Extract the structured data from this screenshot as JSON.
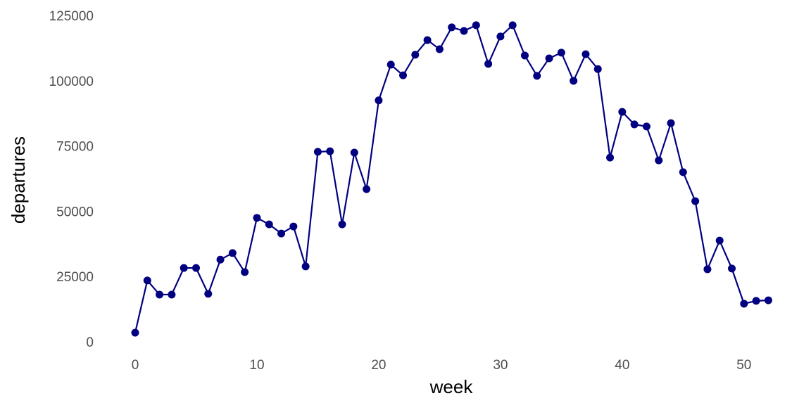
{
  "chart_data": {
    "type": "line",
    "x_label": "week",
    "y_label": "departures",
    "x": [
      0,
      1,
      2,
      3,
      4,
      5,
      6,
      7,
      8,
      9,
      10,
      11,
      12,
      13,
      14,
      15,
      16,
      17,
      18,
      19,
      20,
      21,
      22,
      23,
      24,
      25,
      26,
      27,
      28,
      29,
      30,
      31,
      32,
      33,
      34,
      35,
      36,
      37,
      38,
      39,
      40,
      41,
      42,
      43,
      44,
      45,
      46,
      47,
      48,
      49,
      50,
      51,
      52
    ],
    "values": [
      4000,
      24000,
      18600,
      18600,
      28800,
      28800,
      18900,
      32000,
      34500,
      27200,
      48000,
      45500,
      42000,
      44700,
      29400,
      73300,
      73500,
      45500,
      73000,
      59000,
      93000,
      106700,
      102600,
      110500,
      116100,
      112600,
      121000,
      119600,
      121800,
      107000,
      117500,
      121800,
      110200,
      102400,
      109100,
      111300,
      100500,
      110700,
      105000,
      71100,
      88600,
      83800,
      83000,
      70000,
      84300,
      65500,
      54400,
      28300,
      39300,
      28600,
      15100,
      16200,
      16400
    ],
    "color": "#000080",
    "xlim": [
      -2.5,
      54
    ],
    "xticks": [
      0,
      10,
      20,
      30,
      40,
      50
    ],
    "ylim": [
      0,
      125000
    ],
    "yticks": [
      0,
      25000,
      50000,
      75000,
      100000,
      125000
    ]
  }
}
